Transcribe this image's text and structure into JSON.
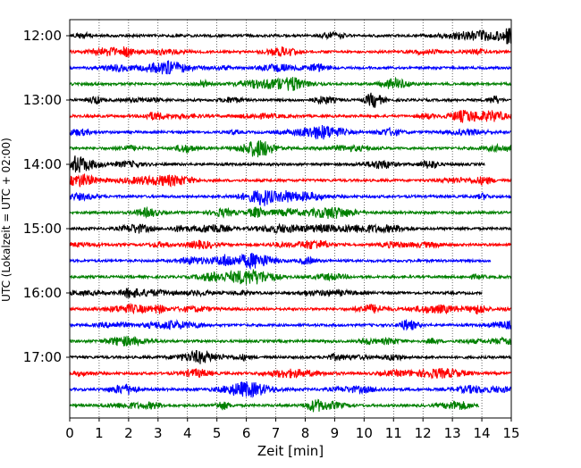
{
  "chart_data": {
    "type": "line",
    "title": "",
    "xlabel": "Zeit  [min]",
    "ylabel": "UTC (Lokalzeit = UTC + 02:00)",
    "xlim": [
      0,
      15
    ],
    "x_ticks": [
      "0",
      "1",
      "2",
      "3",
      "4",
      "5",
      "6",
      "7",
      "8",
      "9",
      "10",
      "11",
      "12",
      "13",
      "14",
      "15"
    ],
    "y_tick_labels": [
      "12:00",
      "13:00",
      "14:00",
      "15:00",
      "16:00",
      "17:00"
    ],
    "grid": "vertical dotted lines at each minute",
    "legend": "none",
    "series_colors": [
      "#000000",
      "#ff0000",
      "#0000ff",
      "#008000"
    ],
    "traces": [
      {
        "start": "12:00",
        "color": "#000000",
        "x_end": 15.0
      },
      {
        "start": "12:15",
        "color": "#ff0000",
        "x_end": 15.0
      },
      {
        "start": "12:30",
        "color": "#0000ff",
        "x_end": 15.0
      },
      {
        "start": "12:45",
        "color": "#008000",
        "x_end": 15.0
      },
      {
        "start": "13:00",
        "color": "#000000",
        "x_end": 15.0
      },
      {
        "start": "13:15",
        "color": "#ff0000",
        "x_end": 15.0
      },
      {
        "start": "13:30",
        "color": "#0000ff",
        "x_end": 15.0
      },
      {
        "start": "13:45",
        "color": "#008000",
        "x_end": 15.0
      },
      {
        "start": "14:00",
        "color": "#000000",
        "x_end": 14.1
      },
      {
        "start": "14:15",
        "color": "#ff0000",
        "x_end": 15.0
      },
      {
        "start": "14:30",
        "color": "#0000ff",
        "x_end": 15.0
      },
      {
        "start": "14:45",
        "color": "#008000",
        "x_end": 15.0
      },
      {
        "start": "15:00",
        "color": "#000000",
        "x_end": 15.0
      },
      {
        "start": "15:15",
        "color": "#ff0000",
        "x_end": 15.0
      },
      {
        "start": "15:30",
        "color": "#0000ff",
        "x_end": 14.3
      },
      {
        "start": "15:45",
        "color": "#008000",
        "x_end": 15.0
      },
      {
        "start": "16:00",
        "color": "#000000",
        "x_end": 14.0
      },
      {
        "start": "16:15",
        "color": "#ff0000",
        "x_end": 15.0
      },
      {
        "start": "16:30",
        "color": "#0000ff",
        "x_end": 15.0
      },
      {
        "start": "16:45",
        "color": "#008000",
        "x_end": 15.0
      },
      {
        "start": "17:00",
        "color": "#000000",
        "x_end": 15.0
      },
      {
        "start": "17:15",
        "color": "#ff0000",
        "x_end": 15.0
      },
      {
        "start": "17:30",
        "color": "#0000ff",
        "x_end": 15.0
      },
      {
        "start": "17:45",
        "color": "#008000",
        "x_end": 13.9
      }
    ]
  }
}
